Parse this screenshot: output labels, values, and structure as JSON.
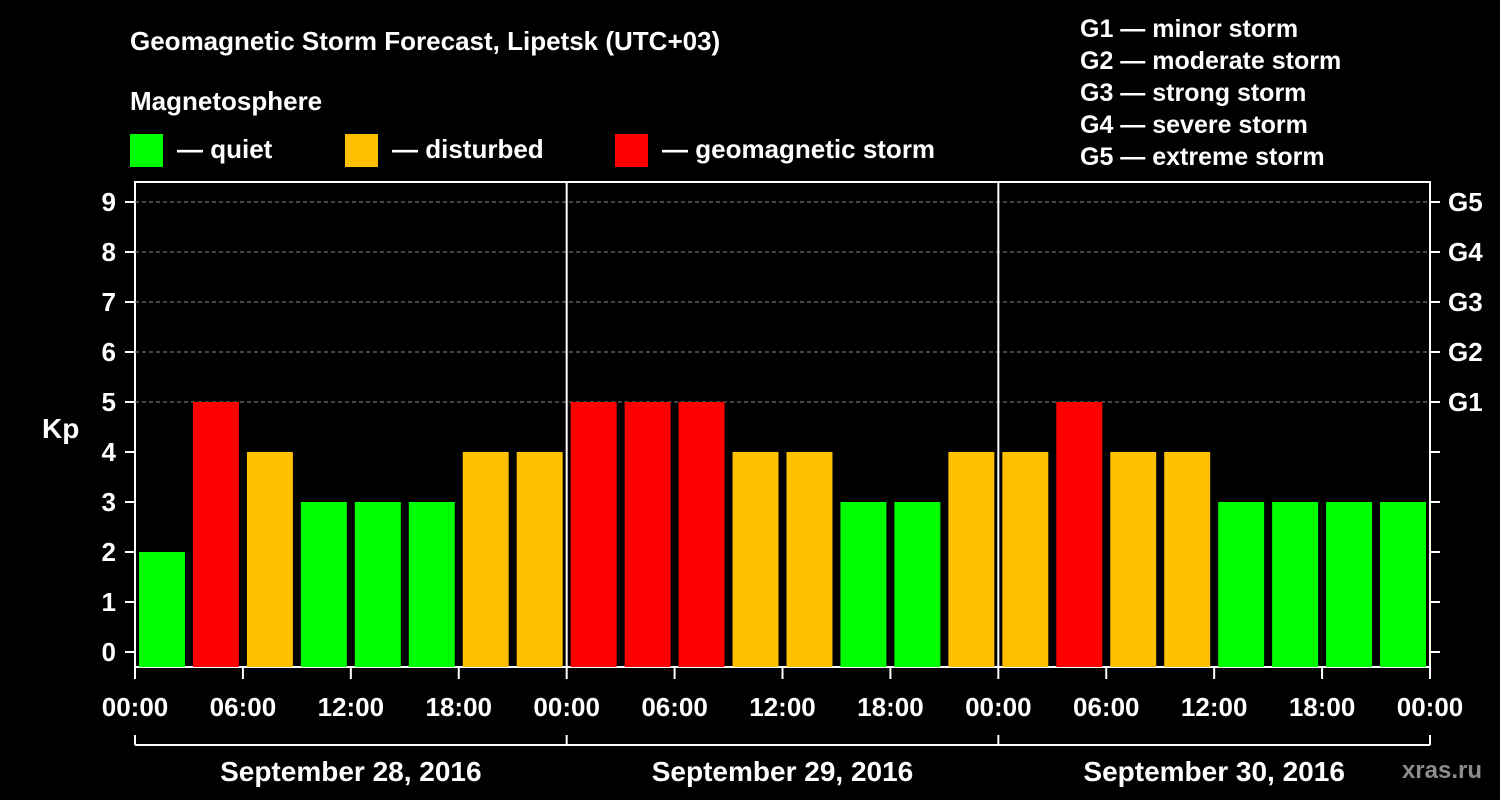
{
  "title": "Geomagnetic Storm Forecast, Lipetsk (UTC+03)",
  "legend": {
    "heading": "Magnetosphere",
    "items": [
      {
        "label": "— quiet",
        "color": "#00ff00"
      },
      {
        "label": "— disturbed",
        "color": "#ffc000"
      },
      {
        "label": "— geomagnetic storm",
        "color": "#ff0000"
      }
    ]
  },
  "scale_key": [
    "G1 — minor storm",
    "G2 — moderate storm",
    "G3 — strong storm",
    "G4 — severe storm",
    "G5 — extreme storm"
  ],
  "watermark": "xras.ru",
  "chart_data": {
    "type": "bar",
    "ylabel": "Kp",
    "ylim": [
      0,
      9
    ],
    "yticks": [
      "0",
      "1",
      "2",
      "3",
      "4",
      "5",
      "6",
      "7",
      "8",
      "9"
    ],
    "right_ticks": [
      {
        "kp": 5,
        "label": "G1"
      },
      {
        "kp": 6,
        "label": "G2"
      },
      {
        "kp": 7,
        "label": "G3"
      },
      {
        "kp": 8,
        "label": "G4"
      },
      {
        "kp": 9,
        "label": "G5"
      }
    ],
    "xticks": [
      "00:00",
      "06:00",
      "12:00",
      "18:00",
      "00:00",
      "06:00",
      "12:00",
      "18:00",
      "00:00",
      "06:00",
      "12:00",
      "18:00",
      "00:00"
    ],
    "days": [
      "September 28, 2016",
      "September 29, 2016",
      "September 30, 2016"
    ],
    "values": [
      2,
      5,
      4,
      3,
      3,
      3,
      4,
      4,
      5,
      5,
      5,
      4,
      4,
      3,
      3,
      4,
      4,
      5,
      4,
      4,
      3,
      3,
      3,
      3
    ],
    "thresholds": {
      "quiet_max": 3,
      "disturbed_max": 4
    },
    "grid": true
  }
}
